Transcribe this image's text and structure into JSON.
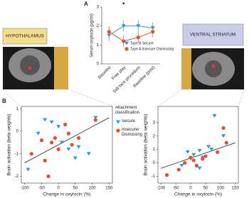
{
  "panel_labels": [
    "A",
    "B"
  ],
  "regions": [
    "HYPOTHALAMUS",
    "VENTRAL STRIATUM"
  ],
  "chart_data": [
    {
      "type": "line",
      "ylabel": "Serum oxytocin (pg/ml)",
      "annotation": "*",
      "categories": [
        "Baseline",
        "Free play",
        "Still face procedure",
        "Baseline (post)"
      ],
      "ylim": [
        0,
        3
      ],
      "yticks": [
        0,
        1,
        2,
        3
      ],
      "series": [
        {
          "name": "Type B Secure",
          "color": "#2a9bd7",
          "marker": "triangle",
          "values": [
            1.5,
            2.0,
            2.0,
            1.9
          ],
          "errors": [
            0.3,
            0.3,
            0.3,
            0.3
          ]
        },
        {
          "name": "Type A Insecure Dismissing",
          "color": "#e0502b",
          "marker": "circle",
          "values": [
            1.7,
            1.2,
            1.4,
            1.7
          ],
          "errors": [
            0.3,
            0.3,
            0.3,
            0.3
          ]
        }
      ]
    },
    {
      "type": "scatter",
      "xlabel": "Change in oxytocin (%)",
      "ylabel": "Brain activation (beta weights)",
      "legend_title": "Attachment classification",
      "xlim": [
        -110,
        160
      ],
      "xticks": [
        -100,
        -50,
        0,
        50,
        100,
        150
      ],
      "ylim": [
        -2.3,
        1.1
      ],
      "yticks": [
        -2,
        -1,
        0,
        1
      ],
      "trendline": {
        "x": [
          -100,
          150
        ],
        "y": [
          -1.4,
          0.6
        ]
      },
      "series": [
        {
          "name": "Secure",
          "color": "#2a9bd7",
          "marker": "triangle",
          "x": [
            -60,
            -40,
            -20,
            0,
            10,
            30,
            50,
            60,
            90,
            110,
            -90
          ],
          "values": [
            -0.1,
            0.5,
            0.4,
            0.2,
            -0.5,
            -0.8,
            -1.2,
            -0.7,
            -1.0,
            0.6,
            -1.7
          ]
        },
        {
          "name": "Insecure/ Dismissing",
          "color": "#e0502b",
          "marker": "circle",
          "x": [
            -80,
            -50,
            -40,
            -20,
            -10,
            0,
            20,
            30,
            40,
            60,
            110,
            -30
          ],
          "values": [
            -1.0,
            -0.4,
            -1.3,
            -0.5,
            -0.3,
            -0.8,
            0.3,
            -0.1,
            -0.6,
            -0.3,
            0.5,
            -2.0
          ]
        }
      ]
    },
    {
      "type": "scatter",
      "xlabel": "Change in oxytocin (%)",
      "ylabel": "Brain activation (beta weights)",
      "xlim": [
        -110,
        160
      ],
      "xticks": [
        -100,
        -50,
        0,
        50,
        100,
        150
      ],
      "ylim": [
        -1.5,
        4.2
      ],
      "yticks": [
        -1,
        0,
        1,
        2,
        3
      ],
      "trendline": {
        "x": [
          -100,
          150
        ],
        "y": [
          -0.4,
          1.5
        ]
      },
      "series": [
        {
          "color": "#2a9bd7",
          "marker": "triangle",
          "x": [
            -30,
            -10,
            0,
            10,
            30,
            40,
            60,
            70,
            80,
            110,
            30
          ],
          "values": [
            -0.2,
            0.8,
            0.3,
            0.6,
            0.9,
            0.4,
            1.2,
            1.0,
            3.5,
            2.0,
            -0.4
          ]
        },
        {
          "color": "#e0502b",
          "marker": "circle",
          "x": [
            -80,
            -40,
            -20,
            0,
            10,
            20,
            40,
            50,
            90,
            110,
            120
          ],
          "values": [
            -0.9,
            -0.5,
            0.0,
            0.4,
            0.2,
            -0.2,
            0.3,
            0.5,
            0.8,
            2.6,
            1.5
          ]
        }
      ]
    }
  ]
}
